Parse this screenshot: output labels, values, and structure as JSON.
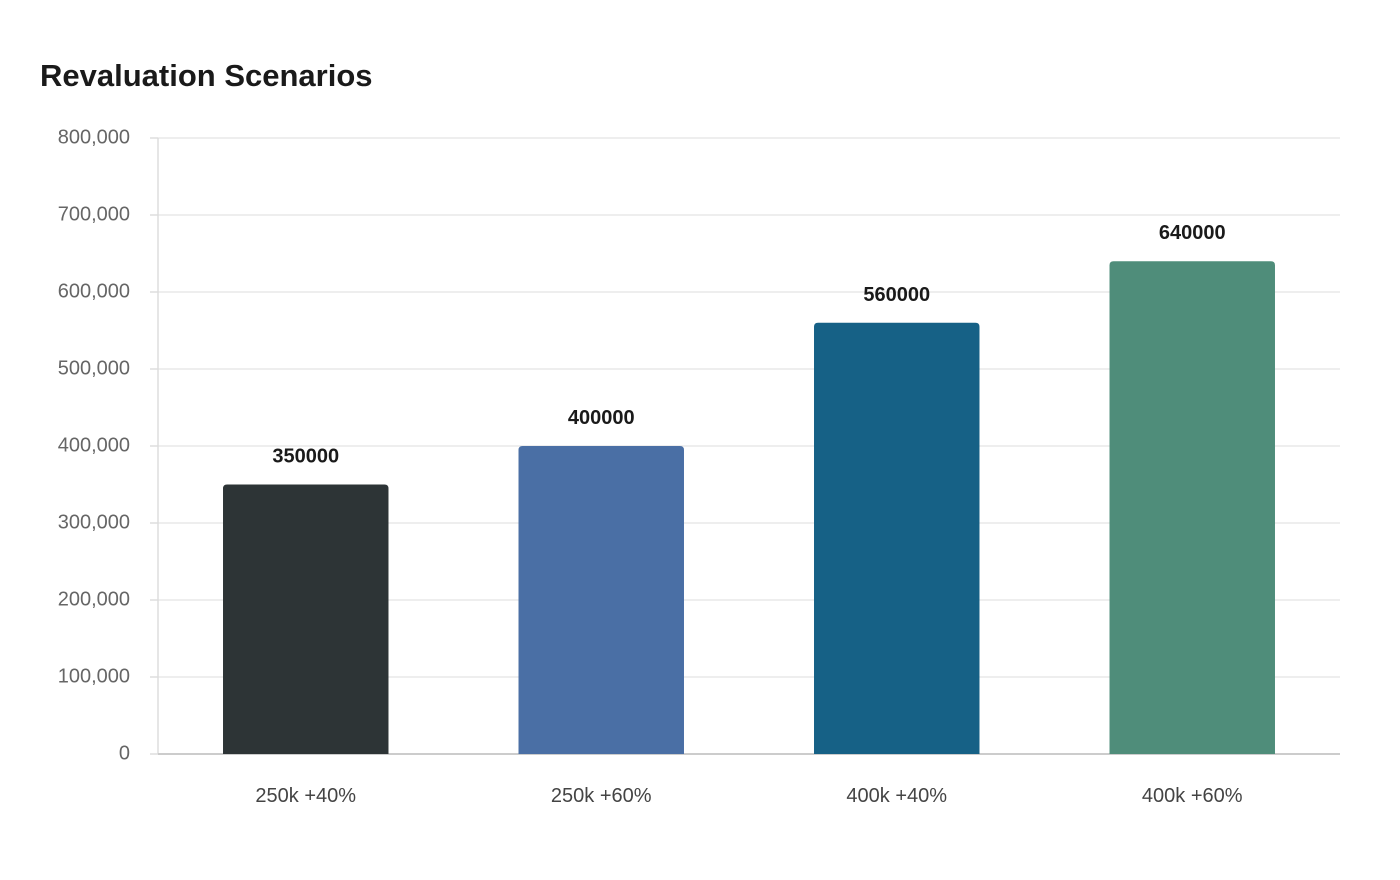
{
  "chart_data": {
    "type": "bar",
    "title": "Revaluation Scenarios",
    "xlabel": "",
    "ylabel": "",
    "categories": [
      "250k +40%",
      "250k +60%",
      "400k +40%",
      "400k +60%"
    ],
    "values": [
      350000,
      400000,
      560000,
      640000
    ],
    "data_labels": [
      "350000",
      "400000",
      "560000",
      "640000"
    ],
    "colors": [
      "#2d3436",
      "#4a6fa5",
      "#166186",
      "#4f8d7a"
    ],
    "ylim": [
      0,
      800000
    ],
    "yticks": [
      0,
      100000,
      200000,
      300000,
      400000,
      500000,
      600000,
      700000,
      800000
    ],
    "ytick_labels": [
      "0",
      "100,000",
      "200,000",
      "300,000",
      "400,000",
      "500,000",
      "600,000",
      "700,000",
      "800,000"
    ],
    "grid": true,
    "legend": "none"
  }
}
